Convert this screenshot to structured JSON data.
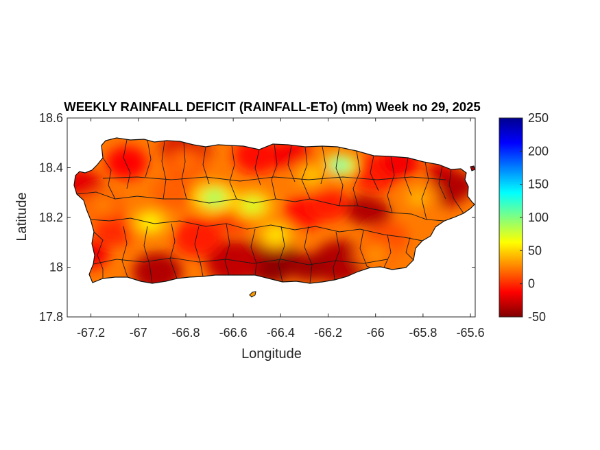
{
  "chart_data": {
    "type": "heatmap",
    "title": "WEEKLY RAINFALL DEFICIT (RAINFALL-ETo) (mm) Week no 29, 2025",
    "xlabel": "Longitude",
    "ylabel": "Latitude",
    "xlim": [
      -67.3,
      -65.58
    ],
    "ylim": [
      17.8,
      18.6
    ],
    "x_ticks": [
      "-67.2",
      "-67",
      "-66.8",
      "-66.6",
      "-66.4",
      "-66.2",
      "-66",
      "-65.8",
      "-65.6"
    ],
    "x_tick_values": [
      -67.2,
      -67.0,
      -66.8,
      -66.6,
      -66.4,
      -66.2,
      -66.0,
      -65.8,
      -65.6
    ],
    "y_ticks": [
      "18.6",
      "18.4",
      "18.2",
      "18"
    ],
    "y_tick_values": [
      18.6,
      18.4,
      18.2,
      18.0
    ],
    "y_extra_tick": {
      "label": "17.8",
      "value": 17.8
    },
    "colorbar": {
      "range": [
        -50,
        250
      ],
      "ticks": [
        "250",
        "200",
        "150",
        "100",
        "50",
        "0",
        "-50"
      ],
      "tick_values": [
        250,
        200,
        150,
        100,
        50,
        0,
        -50
      ],
      "colormap": "jet (reversed)"
    },
    "region": "Puerto Rico",
    "hotspots": [
      {
        "lon": -66.15,
        "lat": 18.41,
        "value": 120
      },
      {
        "lon": -66.68,
        "lat": 18.28,
        "value": 90
      },
      {
        "lon": -66.52,
        "lat": 18.25,
        "value": 75
      },
      {
        "lon": -66.95,
        "lat": 18.18,
        "value": 60
      },
      {
        "lon": -66.42,
        "lat": 18.13,
        "value": 55
      },
      {
        "lon": -66.27,
        "lat": 18.37,
        "value": 45
      },
      {
        "lon": -65.82,
        "lat": 18.28,
        "value": 40
      },
      {
        "lon": -66.0,
        "lat": 18.05,
        "value": 30
      },
      {
        "lon": -67.15,
        "lat": 18.25,
        "value": 25
      },
      {
        "lon": -66.8,
        "lat": 18.42,
        "value": 20
      }
    ],
    "coldspots": [
      {
        "lon": -66.28,
        "lat": 18.0,
        "value": -40
      },
      {
        "lon": -66.9,
        "lat": 17.98,
        "value": -35
      },
      {
        "lon": -66.02,
        "lat": 18.22,
        "value": -35
      },
      {
        "lon": -65.66,
        "lat": 18.33,
        "value": -35
      },
      {
        "lon": -67.25,
        "lat": 18.34,
        "value": -20
      },
      {
        "lon": -66.78,
        "lat": 18.46,
        "value": -25
      }
    ]
  }
}
